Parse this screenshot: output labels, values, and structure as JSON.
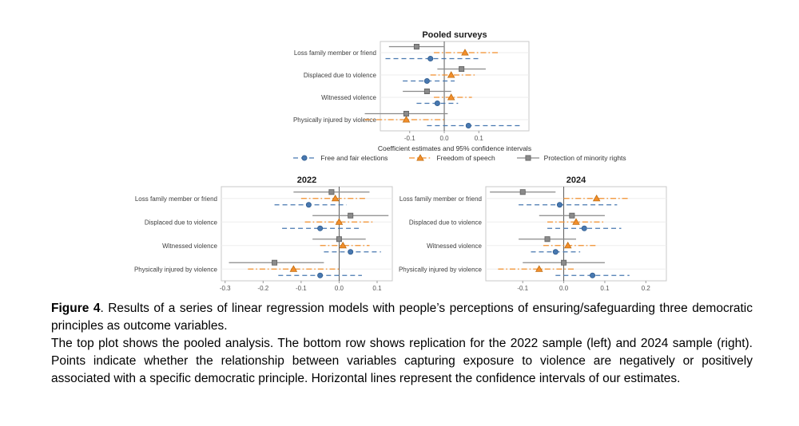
{
  "figure": {
    "legend": [
      {
        "label": "Free and fair elections",
        "marker": "circle",
        "color": "#4878b0",
        "linestyle": "dashed"
      },
      {
        "label": "Freedom of speech",
        "marker": "triangle",
        "color": "#f28e2b",
        "linestyle": "dashdot"
      },
      {
        "label": "Protection of minority rights",
        "marker": "square",
        "color": "#8a8a8a",
        "linestyle": "solid"
      }
    ],
    "caption": {
      "label": "Figure 4",
      "text1": ". Results of a series of linear regression models with people’s perceptions of ensuring/safeguarding three democratic principles as outcome variables.",
      "text2": "The top plot shows the pooled analysis. The bottom row shows replication for the 2022 sample (left) and 2024 sample (right). Points indicate whether the relationship between variables capturing exposure to violence are negatively or positively associated with a specific democratic principle. Horizontal lines represent the confidence intervals of our estimates."
    }
  },
  "chart_data": [
    {
      "type": "scatter",
      "error_bars": true,
      "title": "Pooled surveys",
      "xlabel": "Coefficient estimates and 95% confidence intervals",
      "xlim": [
        -0.185,
        0.245
      ],
      "xticks": [
        -0.1,
        0.0,
        0.1
      ],
      "categories": [
        "Loss family member or friend",
        "Displaced due to violence",
        "Witnessed violence",
        "Physically injured by violence"
      ],
      "series": [
        {
          "name": "Free and fair elections",
          "marker": "circle",
          "color": "#4878b0",
          "linestyle": "dashed",
          "values": [
            {
              "est": -0.04,
              "lo": -0.17,
              "hi": 0.1
            },
            {
              "est": -0.05,
              "lo": -0.12,
              "hi": 0.03
            },
            {
              "est": -0.02,
              "lo": -0.08,
              "hi": 0.04
            },
            {
              "est": 0.07,
              "lo": -0.05,
              "hi": 0.22
            }
          ]
        },
        {
          "name": "Freedom of speech",
          "marker": "triangle",
          "color": "#f28e2b",
          "linestyle": "dashdot",
          "values": [
            {
              "est": 0.06,
              "lo": -0.03,
              "hi": 0.16
            },
            {
              "est": 0.02,
              "lo": -0.04,
              "hi": 0.09
            },
            {
              "est": 0.02,
              "lo": -0.03,
              "hi": 0.08
            },
            {
              "est": -0.11,
              "lo": -0.23,
              "hi": 0.0
            }
          ]
        },
        {
          "name": "Protection of minority rights",
          "marker": "square",
          "color": "#8a8a8a",
          "linestyle": "solid",
          "values": [
            {
              "est": -0.08,
              "lo": -0.16,
              "hi": 0.0
            },
            {
              "est": 0.05,
              "lo": -0.02,
              "hi": 0.12
            },
            {
              "est": -0.05,
              "lo": -0.12,
              "hi": 0.02
            },
            {
              "est": -0.11,
              "lo": -0.23,
              "hi": 0.01
            }
          ]
        }
      ]
    },
    {
      "type": "scatter",
      "error_bars": true,
      "title": "2022",
      "xlabel": "",
      "xlim": [
        -0.31,
        0.14
      ],
      "xticks": [
        -0.3,
        -0.2,
        -0.1,
        0.0,
        0.1
      ],
      "categories": [
        "Loss family member or friend",
        "Displaced due to violence",
        "Witnessed violence",
        "Physically injured by violence"
      ],
      "series": [
        {
          "name": "Free and fair elections",
          "marker": "circle",
          "color": "#4878b0",
          "linestyle": "dashed",
          "values": [
            {
              "est": -0.08,
              "lo": -0.17,
              "hi": 0.02
            },
            {
              "est": -0.05,
              "lo": -0.15,
              "hi": 0.06
            },
            {
              "est": 0.03,
              "lo": -0.04,
              "hi": 0.11
            },
            {
              "est": -0.05,
              "lo": -0.16,
              "hi": 0.06
            }
          ]
        },
        {
          "name": "Freedom of speech",
          "marker": "triangle",
          "color": "#f28e2b",
          "linestyle": "dashdot",
          "values": [
            {
              "est": -0.01,
              "lo": -0.1,
              "hi": 0.07
            },
            {
              "est": 0.0,
              "lo": -0.09,
              "hi": 0.09
            },
            {
              "est": 0.01,
              "lo": -0.05,
              "hi": 0.08
            },
            {
              "est": -0.12,
              "lo": -0.24,
              "hi": 0.0
            }
          ]
        },
        {
          "name": "Protection of minority rights",
          "marker": "square",
          "color": "#8a8a8a",
          "linestyle": "solid",
          "values": [
            {
              "est": -0.02,
              "lo": -0.12,
              "hi": 0.08
            },
            {
              "est": 0.03,
              "lo": -0.07,
              "hi": 0.13
            },
            {
              "est": 0.0,
              "lo": -0.07,
              "hi": 0.07
            },
            {
              "est": -0.17,
              "lo": -0.29,
              "hi": -0.04
            }
          ]
        }
      ]
    },
    {
      "type": "scatter",
      "error_bars": true,
      "title": "2024",
      "xlabel": "",
      "xlim": [
        -0.19,
        0.25
      ],
      "xticks": [
        -0.1,
        0.0,
        0.1,
        0.2
      ],
      "categories": [
        "Loss family member or friend",
        "Displaced due to violence",
        "Witnessed violence",
        "Physically injured by violence"
      ],
      "series": [
        {
          "name": "Free and fair elections",
          "marker": "circle",
          "color": "#4878b0",
          "linestyle": "dashed",
          "values": [
            {
              "est": -0.01,
              "lo": -0.11,
              "hi": 0.13
            },
            {
              "est": 0.05,
              "lo": -0.04,
              "hi": 0.14
            },
            {
              "est": -0.02,
              "lo": -0.08,
              "hi": 0.04
            },
            {
              "est": 0.07,
              "lo": -0.02,
              "hi": 0.16
            }
          ]
        },
        {
          "name": "Freedom of speech",
          "marker": "triangle",
          "color": "#f28e2b",
          "linestyle": "dashdot",
          "values": [
            {
              "est": 0.08,
              "lo": 0.0,
              "hi": 0.16
            },
            {
              "est": 0.03,
              "lo": -0.04,
              "hi": 0.1
            },
            {
              "est": 0.01,
              "lo": -0.05,
              "hi": 0.08
            },
            {
              "est": -0.06,
              "lo": -0.16,
              "hi": 0.03
            }
          ]
        },
        {
          "name": "Protection of minority rights",
          "marker": "square",
          "color": "#8a8a8a",
          "linestyle": "solid",
          "values": [
            {
              "est": -0.1,
              "lo": -0.18,
              "hi": -0.02
            },
            {
              "est": 0.02,
              "lo": -0.06,
              "hi": 0.1
            },
            {
              "est": -0.04,
              "lo": -0.11,
              "hi": 0.03
            },
            {
              "est": 0.0,
              "lo": -0.1,
              "hi": 0.1
            }
          ]
        }
      ]
    }
  ]
}
